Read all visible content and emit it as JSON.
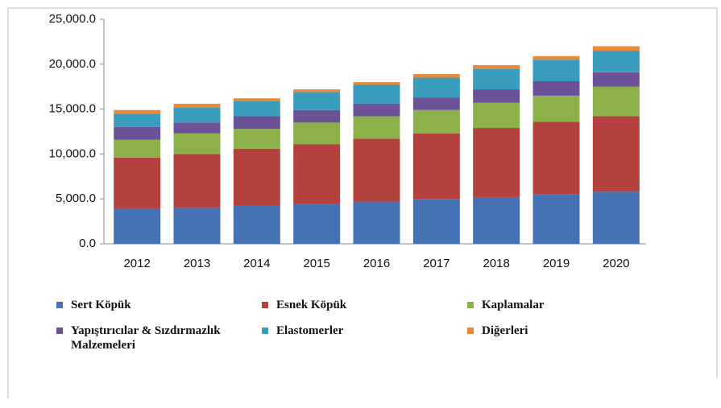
{
  "chart_data": {
    "type": "stacked_bar",
    "categories": [
      "2012",
      "2013",
      "2014",
      "2015",
      "2016",
      "2017",
      "2018",
      "2019",
      "2020"
    ],
    "series": [
      {
        "name": "Sert Köpük",
        "color": "#4472b4",
        "values": [
          3900,
          4000,
          4300,
          4400,
          4700,
          5000,
          5200,
          5500,
          5800
        ]
      },
      {
        "name": "Esnek Köpük",
        "color": "#b5413e",
        "values": [
          5700,
          6000,
          6300,
          6700,
          7000,
          7300,
          7700,
          8100,
          8400
        ]
      },
      {
        "name": "Kaplamalar",
        "color": "#8cb04a",
        "values": [
          2000,
          2300,
          2200,
          2400,
          2500,
          2600,
          2800,
          2900,
          3300
        ]
      },
      {
        "name": "Yapıştırıcılar & Sızdırmazlık Malzemeleri",
        "color": "#6c5196",
        "values": [
          1400,
          1200,
          1400,
          1400,
          1400,
          1400,
          1500,
          1600,
          1600
        ]
      },
      {
        "name": "Elastomerler",
        "color": "#3a9cbc",
        "values": [
          1500,
          1700,
          1700,
          2000,
          2100,
          2200,
          2300,
          2400,
          2400
        ]
      },
      {
        "name": "Diğerleri",
        "color": "#e98a3a",
        "values": [
          400,
          400,
          300,
          300,
          300,
          400,
          400,
          400,
          500
        ]
      }
    ],
    "ylim": [
      0,
      25000
    ],
    "yticks": [
      {
        "value": 0,
        "label": "0.0"
      },
      {
        "value": 5000,
        "label": "5,000.0"
      },
      {
        "value": 10000,
        "label": "10,000.0"
      },
      {
        "value": 15000,
        "label": "15,000.0"
      },
      {
        "value": 20000,
        "label": "20,000.0"
      },
      {
        "value": 25000,
        "label": "25,000.0"
      }
    ],
    "grid": false
  }
}
